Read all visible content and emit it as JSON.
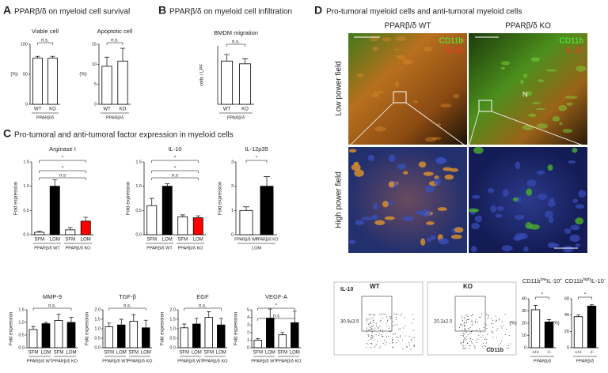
{
  "panels": [
    {
      "letter": "A",
      "title": "PPARβ/δ on myeloid cell survival"
    },
    {
      "letter": "B",
      "title": "PPARβ/δ on myeloid cell infiltration"
    },
    {
      "letter": "C",
      "title": "Pro-tumoral and anti-tumoral factor expression in myeloid cells"
    },
    {
      "letter": "D",
      "title": "Pro-tumoral myeloid cells and anti-tumoral myeloid cells"
    }
  ],
  "images": {
    "columns": [
      "PPARβ/δ WT",
      "PPARβ/δ KO"
    ],
    "rows": [
      "Low power field",
      "High power field"
    ],
    "legend": [
      "CD11b",
      "IL-10"
    ],
    "marker": "N"
  },
  "flow": {
    "plots": [
      {
        "title": "WT",
        "gate": "30.9±3.5"
      },
      {
        "title": "KO",
        "gate": "20.2±2.0"
      }
    ],
    "y_label": "IL-10",
    "x_label": "CD11b"
  },
  "chart_data": [
    {
      "type": "bar",
      "title": "Viable cell",
      "ylabel": "(%)",
      "categories": [
        "WT",
        "KO"
      ],
      "groups": [
        "PPARβ/δ"
      ],
      "values": [
        77,
        77
      ],
      "errors": [
        3,
        3
      ],
      "colors": [
        "#ffffff",
        "#ffffff"
      ],
      "ylim": [
        0,
        100
      ],
      "yticks": [
        0,
        50,
        100
      ],
      "annotations": [
        "n.s."
      ]
    },
    {
      "type": "bar",
      "title": "Apoptotic cell",
      "ylabel": "(%)",
      "categories": [
        "WT",
        "KO"
      ],
      "groups": [
        "PPARβ/δ"
      ],
      "values": [
        9.5,
        10.8
      ],
      "errors": [
        2.3,
        3.2
      ],
      "colors": [
        "#ffffff",
        "#ffffff"
      ],
      "ylim": [
        0,
        15
      ],
      "yticks": [
        0,
        5,
        10,
        15
      ],
      "annotations": [
        "n.s."
      ]
    },
    {
      "type": "bar",
      "title": "BMDM migration",
      "ylabel": "cells / LPF",
      "categories": [
        "WT",
        "KO"
      ],
      "groups": [
        "PPARβ/δ"
      ],
      "values": [
        18.5,
        17.3
      ],
      "errors": [
        2.8,
        2.2
      ],
      "colors": [
        "#ffffff",
        "#ffffff"
      ],
      "ylim": [
        0,
        25
      ],
      "yticks": [],
      "annotations": [
        "n.s."
      ]
    },
    {
      "type": "bar",
      "title": "Arginase I",
      "ylabel": "Fold expression",
      "categories": [
        "SFM",
        "LOM",
        "SFM",
        "LOM"
      ],
      "groups": [
        "PPARβ/δ WT",
        "PPARβ/δ KO"
      ],
      "values": [
        0.05,
        1.0,
        0.1,
        0.28
      ],
      "errors": [
        0.02,
        0.13,
        0.05,
        0.08
      ],
      "colors": [
        "#ffffff",
        "#000000",
        "#ffffff",
        "#ff0000"
      ],
      "ylim": [
        0,
        1.5
      ],
      "yticks": [
        {
          "value": 0,
          "label": "0.0"
        },
        {
          "value": 0.5,
          "label": "0.5"
        },
        {
          "value": 1,
          "label": "1.0"
        },
        {
          "value": 1.5,
          "label": "1.5"
        }
      ],
      "annotations": [
        "*",
        "*",
        "n.s"
      ]
    },
    {
      "type": "bar",
      "title": "IL-10",
      "ylabel": "Fold expression",
      "categories": [
        "SFM",
        "LOM",
        "SFM",
        "LOM"
      ],
      "groups": [
        "PPARβ/δ WT",
        "PPARβ/δ KO"
      ],
      "values": [
        0.6,
        1.0,
        0.37,
        0.35
      ],
      "errors": [
        0.15,
        0.05,
        0.04,
        0.04
      ],
      "colors": [
        "#ffffff",
        "#000000",
        "#ffffff",
        "#ff0000"
      ],
      "ylim": [
        0,
        1.5
      ],
      "yticks": [
        {
          "value": 0,
          "label": "0.0"
        },
        {
          "value": 0.5,
          "label": "0.5"
        },
        {
          "value": 1,
          "label": "1.0"
        },
        {
          "value": 1.5,
          "label": "1.5"
        }
      ],
      "annotations": [
        "*",
        "*",
        "n.s"
      ]
    },
    {
      "type": "bar",
      "title": "IL-12p35",
      "ylabel": "Fold expression",
      "categories": [
        "PPARβ/δ WT",
        "PPARβ/δ KO"
      ],
      "groups": [
        "LOM"
      ],
      "values": [
        1.0,
        2.0
      ],
      "errors": [
        0.15,
        0.4
      ],
      "colors": [
        "#ffffff",
        "#000000"
      ],
      "ylim": [
        0,
        3
      ],
      "yticks": [
        0,
        1,
        2,
        3
      ],
      "annotations": [
        "*"
      ]
    },
    {
      "type": "bar",
      "title": "MMP-9",
      "ylabel": "Fold expression",
      "categories": [
        "SFM",
        "LOM",
        "SFM",
        "LOM"
      ],
      "groups": [
        "PPARβ/δ WT",
        "PPARβ/δ KO"
      ],
      "values": [
        0.72,
        0.95,
        1.08,
        1.0
      ],
      "errors": [
        0.12,
        0.05,
        0.25,
        0.2
      ],
      "colors": [
        "#ffffff",
        "#000000",
        "#ffffff",
        "#000000"
      ],
      "ylim": [
        0,
        1.5
      ],
      "yticks": [
        {
          "value": 0,
          "label": "0.0"
        },
        {
          "value": 0.5,
          "label": "0.5"
        },
        {
          "value": 1,
          "label": "1.0"
        },
        {
          "value": 1.5,
          "label": "1.5"
        }
      ],
      "annotations": [
        "n.s."
      ]
    },
    {
      "type": "bar",
      "title": "TGF-β",
      "ylabel": "Fold expression",
      "categories": [
        "SFM",
        "LOM",
        "SFM",
        "LOM"
      ],
      "groups": [
        "PPARβ/δ WT",
        "PPARβ/δ KO"
      ],
      "values": [
        1.1,
        1.2,
        1.4,
        1.05
      ],
      "errors": [
        0.2,
        0.3,
        0.35,
        0.4
      ],
      "colors": [
        "#ffffff",
        "#000000",
        "#ffffff",
        "#000000"
      ],
      "ylim": [
        0,
        2
      ],
      "yticks": [
        {
          "value": 0,
          "label": "0.0"
        },
        {
          "value": 0.5,
          "label": "0.5"
        },
        {
          "value": 1,
          "label": "1.0"
        },
        {
          "value": 1.5,
          "label": "1.5"
        },
        {
          "value": 2,
          "label": "2.0"
        }
      ],
      "annotations": [
        "n.s."
      ]
    },
    {
      "type": "bar",
      "title": "EGF",
      "ylabel": "Fold expression",
      "categories": [
        "SFM",
        "LOM",
        "SFM",
        "LOM"
      ],
      "groups": [
        "PPARβ/δ WT",
        "PPARβ/δ KO"
      ],
      "values": [
        1.05,
        1.25,
        1.6,
        1.2
      ],
      "errors": [
        0.2,
        0.3,
        0.3,
        0.35
      ],
      "colors": [
        "#ffffff",
        "#000000",
        "#ffffff",
        "#000000"
      ],
      "ylim": [
        0,
        2
      ],
      "yticks": [
        {
          "value": 0,
          "label": "0.0"
        },
        {
          "value": 0.5,
          "label": "0.5"
        },
        {
          "value": 1,
          "label": "1.0"
        },
        {
          "value": 1.5,
          "label": "1.5"
        },
        {
          "value": 2,
          "label": "2.0"
        }
      ],
      "annotations": [
        "n.s."
      ]
    },
    {
      "type": "bar",
      "title": "VEGF-A",
      "ylabel": "Fold expression",
      "categories": [
        "SFM",
        "LOM",
        "SFM",
        "LOM"
      ],
      "groups": [
        "PPARβ/δ WT",
        "PPARβ/δ KO"
      ],
      "values": [
        1.0,
        3.9,
        1.7,
        3.3
      ],
      "errors": [
        0.2,
        1.2,
        0.3,
        1.5
      ],
      "colors": [
        "#ffffff",
        "#000000",
        "#ffffff",
        "#000000"
      ],
      "ylim": [
        0,
        5
      ],
      "yticks": [
        0,
        1,
        2,
        3,
        4,
        5
      ],
      "annotations": [
        "*",
        "n.s"
      ]
    },
    {
      "type": "bar",
      "title": [
        "CD11b",
        "low",
        "IL-10",
        "+"
      ],
      "ylabel": "(%)",
      "categories": [
        "+/+",
        "-/-"
      ],
      "groups": [
        "PPARβ/δ"
      ],
      "values": [
        31,
        21
      ],
      "errors": [
        3.5,
        2
      ],
      "colors": [
        "#ffffff",
        "#000000"
      ],
      "ylim": [
        0,
        40
      ],
      "yticks": [
        0,
        10,
        20,
        30,
        40
      ],
      "annotations": [
        "*"
      ]
    },
    {
      "type": "bar",
      "title": [
        "CD11b",
        "high",
        "IL-10",
        "-"
      ],
      "ylabel": "(%)",
      "categories": [
        "+/+",
        "-/-"
      ],
      "groups": [
        "PPARβ/δ"
      ],
      "values": [
        38,
        51
      ],
      "errors": [
        2,
        1.5
      ],
      "colors": [
        "#ffffff",
        "#000000"
      ],
      "ylim": [
        0,
        60
      ],
      "yticks": [
        0,
        20,
        40,
        60
      ],
      "annotations": [
        "*"
      ]
    }
  ]
}
